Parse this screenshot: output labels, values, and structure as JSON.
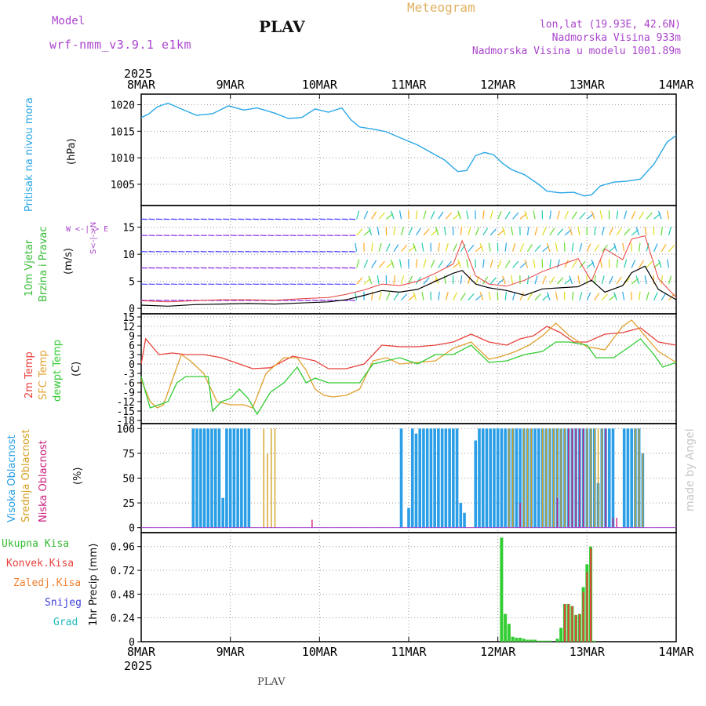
{
  "header": {
    "model_label": "Model",
    "model_name": "wrf-nmm_v3.9.1 e1km",
    "station": "PLAV",
    "meteogram": "Meteogram",
    "lonlat": "lon,lat (19.93E, 42.6N)",
    "elevation": "Nadmorska Visina 933m",
    "model_elevation": "Nadmorska Visina u modelu 1001.89m",
    "footer_station": "PLAV",
    "watermark": "made by Angel"
  },
  "time_axis": {
    "year": "2025",
    "ticks": [
      "8MAR",
      "9MAR",
      "10MAR",
      "11MAR",
      "12MAR",
      "13MAR",
      "14MAR"
    ]
  },
  "panel_labels": {
    "pressure": {
      "name": "Pritisak na nivou mora",
      "unit": "(hPa)"
    },
    "wind": {
      "name1": "10m Vjetar",
      "name2": "Brzina i Pravac",
      "unit": "(m/s)",
      "compass": "W <-|-> E",
      "compass_ns": "S<-|->N"
    },
    "temp": {
      "t2": "2m Temp",
      "sfc": "SFC Temp",
      "dew": "dewpt Temp",
      "unit": "(C)"
    },
    "cloud": {
      "high": "Visoka Oblacnost",
      "mid": "Srednja Oblacnost",
      "low": "Niska Oblacnost",
      "unit": "(%)"
    },
    "precip": {
      "total": "Ukupna Kisa",
      "conv": "Konvek.Kisa",
      "frz": "Zaledj.Kisa",
      "snow": "Snijeg",
      "grad": "Grad",
      "unit": "1hr Precip (mm)"
    }
  },
  "colors": {
    "pressure": "#2aa7e6",
    "temp2m": "#e8413c",
    "sfc": "#e0a030",
    "dew": "#33cc33",
    "high_cloud": "#2a9ee6",
    "mid_cloud": "#d4a020",
    "low_cloud": "#cc2080",
    "precip_total": "#33cc33",
    "precip_conv": "#e8413c",
    "label_green": "#33bb33",
    "label_purple": "#aa44cc"
  },
  "chart_data": [
    {
      "type": "line",
      "panel": "pressure",
      "ylabel": "(hPa)",
      "ylim": [
        1001,
        1022
      ],
      "yticks": [
        1005,
        1010,
        1015,
        1020
      ],
      "x_days": [
        0,
        0.08,
        0.18,
        0.3,
        0.45,
        0.62,
        0.8,
        0.98,
        1.15,
        1.3,
        1.5,
        1.65,
        1.8,
        1.95,
        2.1,
        2.25,
        2.35,
        2.45,
        2.6,
        2.75,
        2.9,
        3.1,
        3.25,
        3.4,
        3.55,
        3.65,
        3.75,
        3.85,
        3.95,
        4.05,
        4.15,
        4.3,
        4.45,
        4.55,
        4.7,
        4.85,
        4.97,
        5.05,
        5.15,
        5.3,
        5.45,
        5.6,
        5.75,
        5.9,
        6.0
      ],
      "values": [
        1017.6,
        1018.2,
        1019.6,
        1020.3,
        1019.2,
        1018.0,
        1018.3,
        1019.8,
        1019.0,
        1019.4,
        1018.4,
        1017.4,
        1017.6,
        1019.2,
        1018.6,
        1019.4,
        1017.2,
        1015.8,
        1015.4,
        1014.9,
        1013.8,
        1012.4,
        1011.0,
        1009.6,
        1007.4,
        1007.6,
        1010.4,
        1011.0,
        1010.6,
        1009.0,
        1007.8,
        1006.8,
        1005.1,
        1003.7,
        1003.4,
        1003.5,
        1002.8,
        1003.0,
        1004.7,
        1005.4,
        1005.6,
        1006.0,
        1008.8,
        1013.0,
        1014.2
      ]
    },
    {
      "type": "line",
      "panel": "wind",
      "ylabel": "(m/s)",
      "ylim": [
        -1,
        19
      ],
      "yticks": [
        0,
        5,
        10,
        15
      ],
      "x_days": [
        0,
        0.3,
        0.6,
        0.9,
        1.2,
        1.5,
        1.8,
        2.1,
        2.3,
        2.5,
        2.7,
        2.9,
        3.1,
        3.3,
        3.5,
        3.6,
        3.75,
        3.9,
        4.1,
        4.3,
        4.5,
        4.7,
        4.9,
        5.05,
        5.2,
        5.4,
        5.5,
        5.65,
        5.8,
        6.0
      ],
      "values": [
        0.6,
        0.4,
        0.7,
        0.8,
        0.9,
        0.8,
        1.0,
        1.2,
        1.6,
        2.4,
        3.3,
        3.0,
        3.5,
        5.0,
        6.5,
        7.0,
        4.5,
        3.8,
        3.3,
        2.4,
        3.6,
        3.8,
        4.0,
        5.2,
        3.0,
        4.2,
        6.6,
        7.8,
        3.5,
        1.6
      ],
      "max_values": [
        1.4,
        1.2,
        1.4,
        1.6,
        1.6,
        1.5,
        1.8,
        2.0,
        2.6,
        3.4,
        4.5,
        4.2,
        5.0,
        6.5,
        8.2,
        12.5,
        6.0,
        4.5,
        4.1,
        5.2,
        6.8,
        8.0,
        9.2,
        5.0,
        11.0,
        9.0,
        12.8,
        13.4,
        5.5,
        2.0
      ],
      "barb_rows": [
        0,
        3,
        6,
        9,
        12,
        15
      ]
    },
    {
      "type": "line",
      "panel": "temperature",
      "ylabel": "(C)",
      "ylim": [
        -19,
        16
      ],
      "yticks": [
        -18,
        -15,
        -12,
        -9,
        -6,
        -3,
        0,
        3,
        6,
        9,
        12,
        15
      ],
      "series": [
        {
          "name": "2m Temp",
          "x_days": [
            0,
            0.05,
            0.2,
            0.35,
            0.5,
            0.7,
            0.9,
            1.1,
            1.25,
            1.45,
            1.7,
            1.95,
            2.1,
            2.3,
            2.5,
            2.7,
            2.9,
            3.1,
            3.3,
            3.5,
            3.7,
            3.9,
            4.1,
            4.25,
            4.4,
            4.55,
            4.7,
            4.85,
            5.0,
            5.2,
            5.4,
            5.6,
            5.8,
            6.0
          ],
          "values": [
            0,
            8,
            3,
            3.5,
            3,
            3,
            2,
            0,
            -1.5,
            -1.2,
            2.5,
            1,
            -1.5,
            -1.5,
            0,
            6,
            5.5,
            5.5,
            6,
            7,
            9.5,
            7,
            6,
            8,
            9,
            12,
            10,
            7,
            7,
            9.5,
            10,
            11.5,
            7,
            6
          ]
        },
        {
          "name": "SFC Temp",
          "x_days": [
            0,
            0.1,
            0.18,
            0.25,
            0.35,
            0.45,
            0.55,
            0.7,
            0.85,
            1.0,
            1.15,
            1.25,
            1.4,
            1.6,
            1.75,
            1.85,
            1.95,
            2.05,
            2.15,
            2.3,
            2.45,
            2.6,
            2.75,
            2.9,
            3.1,
            3.3,
            3.5,
            3.7,
            3.9,
            4.05,
            4.2,
            4.35,
            4.5,
            4.65,
            4.8,
            5.0,
            5.2,
            5.4,
            5.5,
            5.65,
            5.8,
            6.0
          ],
          "values": [
            -5,
            -12,
            -14,
            -13,
            -5,
            3,
            1,
            -3,
            -12,
            -13,
            -13,
            -14,
            -3,
            2,
            2,
            -2,
            -8,
            -10,
            -10.5,
            -10,
            -8,
            1,
            2,
            0,
            0.5,
            1,
            5,
            7,
            1.5,
            2.5,
            4,
            6,
            9,
            13,
            9,
            5.5,
            4.5,
            12,
            14,
            9,
            4,
            0.5
          ]
        },
        {
          "name": "dewpt Temp",
          "x_days": [
            0,
            0.1,
            0.2,
            0.3,
            0.4,
            0.5,
            0.6,
            0.75,
            0.8,
            0.9,
            1.0,
            1.1,
            1.2,
            1.3,
            1.45,
            1.6,
            1.75,
            1.85,
            1.95,
            2.1,
            2.25,
            2.45,
            2.6,
            2.75,
            2.9,
            3.1,
            3.3,
            3.5,
            3.7,
            3.9,
            4.1,
            4.3,
            4.5,
            4.65,
            4.8,
            5.0,
            5.1,
            5.3,
            5.5,
            5.6,
            5.75,
            5.85,
            6.0
          ],
          "values": [
            -4,
            -14,
            -13,
            -12,
            -6,
            -4,
            -4,
            -4,
            -15,
            -12,
            -11,
            -8,
            -11,
            -16,
            -9,
            -6,
            -1,
            -6,
            -4.5,
            -6,
            -6,
            -6,
            0,
            1,
            2,
            0,
            3,
            3,
            6,
            0.5,
            1,
            3,
            4,
            7,
            7,
            6,
            2,
            2,
            6,
            8,
            3,
            -1,
            0.5
          ]
        }
      ]
    },
    {
      "type": "bar",
      "panel": "cloud",
      "ylabel": "(%)",
      "ylim": [
        -5,
        105
      ],
      "yticks": [
        0,
        25,
        50,
        75,
        100
      ],
      "series": [
        {
          "name": "Visoka Oblacnost",
          "x_hours": [
            14,
            15,
            16,
            17,
            18,
            19,
            20,
            21,
            22,
            23,
            24,
            25,
            26,
            27,
            28,
            29,
            30,
            31,
            32,
            70,
            71,
            72,
            73,
            74,
            75,
            76,
            77,
            78,
            79,
            80,
            81,
            82,
            83,
            84,
            85,
            86,
            87,
            88,
            89,
            90,
            91,
            92,
            93,
            94,
            95,
            96,
            97,
            98,
            99,
            100,
            101,
            102,
            103,
            104,
            105,
            106,
            107,
            108,
            109,
            110,
            111,
            112,
            113,
            114,
            115,
            116,
            117,
            118,
            119,
            120,
            121,
            122,
            123,
            124,
            125,
            126,
            127,
            130,
            131,
            132,
            133,
            134,
            135,
            136
          ],
          "values": [
            100,
            100,
            100,
            100,
            100,
            100,
            100,
            100,
            30,
            100,
            100,
            100,
            100,
            100,
            100,
            100,
            0,
            0,
            0,
            100,
            0,
            20,
            100,
            95,
            100,
            100,
            100,
            100,
            100,
            100,
            100,
            100,
            100,
            100,
            100,
            25,
            15,
            0,
            0,
            88,
            100,
            100,
            100,
            100,
            100,
            100,
            100,
            100,
            100,
            100,
            100,
            100,
            100,
            100,
            100,
            100,
            100,
            100,
            100,
            100,
            100,
            100,
            100,
            100,
            100,
            100,
            100,
            100,
            100,
            100,
            100,
            100,
            45,
            100,
            100,
            100,
            100,
            100,
            100,
            100,
            100,
            100,
            75,
            0
          ]
        },
        {
          "name": "Srednja Oblacnost",
          "x_hours": [
            33,
            34,
            35,
            36,
            99,
            100,
            103,
            104,
            105,
            108,
            109,
            110,
            111,
            112,
            113,
            114,
            115,
            116,
            117,
            118,
            119,
            120,
            121,
            122,
            123,
            124,
            133,
            134,
            135
          ],
          "values": [
            100,
            75,
            100,
            100,
            100,
            100,
            100,
            100,
            100,
            100,
            100,
            100,
            100,
            100,
            100,
            100,
            100,
            100,
            100,
            100,
            100,
            100,
            100,
            100,
            100,
            100,
            100,
            100,
            75
          ]
        },
        {
          "name": "Niska Oblacnost",
          "x_hours": [
            46,
            102,
            112,
            115,
            116,
            117,
            118,
            119,
            125,
            127,
            128
          ],
          "values": [
            8,
            25,
            30,
            100,
            100,
            100,
            100,
            100,
            100,
            10,
            10
          ]
        }
      ]
    },
    {
      "type": "bar",
      "panel": "precip",
      "ylabel": "1hr Precip (mm)",
      "ylim": [
        0,
        1.1
      ],
      "yticks": [
        0,
        0.24,
        0.48,
        0.72,
        0.96
      ],
      "series": [
        {
          "name": "Ukupna Kisa",
          "x_hours": [
            97,
            98,
            99,
            100,
            101,
            102,
            103,
            104,
            105,
            106,
            107,
            108,
            109,
            110,
            112,
            113,
            114,
            115,
            116,
            117,
            118,
            119,
            120,
            121,
            122
          ],
          "values": [
            1.05,
            0.28,
            0.18,
            0.05,
            0.04,
            0.04,
            0.03,
            0.02,
            0.02,
            0.02,
            0.01,
            0.01,
            0.01,
            0.01,
            0.03,
            0.14,
            0.38,
            0.38,
            0.36,
            0.27,
            0.28,
            0.55,
            0.78,
            0.96,
            0.01
          ]
        },
        {
          "name": "Konvek.Kisa",
          "x_hours": [
            114,
            115,
            116,
            117,
            118,
            119,
            120,
            121
          ],
          "values": [
            0.38,
            0.38,
            0.36,
            0.27,
            0.28,
            0.5,
            0.7,
            0.94
          ]
        }
      ]
    }
  ]
}
